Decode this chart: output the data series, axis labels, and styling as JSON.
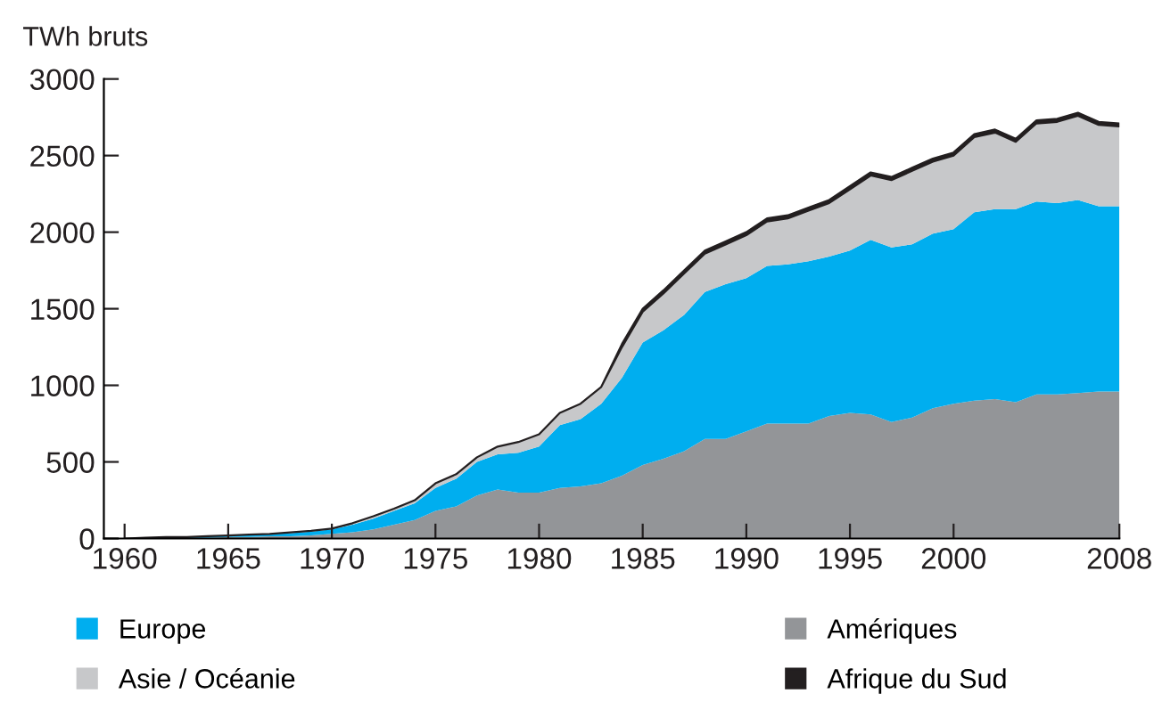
{
  "chart_data": {
    "type": "area",
    "stacked": true,
    "ylabel": "TWh bruts",
    "x": [
      1960,
      1961,
      1962,
      1963,
      1964,
      1965,
      1966,
      1967,
      1968,
      1969,
      1970,
      1971,
      1972,
      1973,
      1974,
      1975,
      1976,
      1977,
      1978,
      1979,
      1980,
      1981,
      1982,
      1983,
      1984,
      1985,
      1986,
      1987,
      1988,
      1989,
      1990,
      1991,
      1992,
      1993,
      1994,
      1995,
      1996,
      1997,
      1998,
      1999,
      2000,
      2001,
      2002,
      2003,
      2004,
      2005,
      2006,
      2007,
      2008
    ],
    "series": [
      {
        "name": "Amériques",
        "color": "#939598",
        "values": [
          0,
          0,
          5,
          5,
          5,
          10,
          10,
          15,
          15,
          20,
          30,
          40,
          60,
          90,
          120,
          180,
          210,
          280,
          320,
          300,
          300,
          330,
          340,
          360,
          410,
          480,
          520,
          570,
          650,
          650,
          700,
          750,
          750,
          750,
          800,
          820,
          810,
          760,
          790,
          850,
          880,
          900,
          910,
          890,
          940,
          940,
          950,
          960,
          960
        ]
      },
      {
        "name": "Europe",
        "color": "#00aeef",
        "values": [
          0,
          5,
          5,
          5,
          10,
          10,
          15,
          15,
          20,
          25,
          30,
          50,
          70,
          90,
          110,
          150,
          180,
          220,
          230,
          260,
          300,
          410,
          440,
          520,
          640,
          800,
          840,
          890,
          960,
          1010,
          1000,
          1030,
          1040,
          1060,
          1040,
          1060,
          1140,
          1140,
          1130,
          1140,
          1140,
          1230,
          1240,
          1260,
          1260,
          1250,
          1260,
          1210,
          1210
        ]
      },
      {
        "name": "Asie / Océanie",
        "color": "#c7c8ca",
        "values": [
          0,
          0,
          0,
          0,
          0,
          0,
          0,
          0,
          5,
          5,
          5,
          10,
          15,
          15,
          20,
          30,
          30,
          30,
          50,
          70,
          80,
          80,
          100,
          110,
          200,
          200,
          240,
          270,
          250,
          260,
          280,
          290,
          300,
          330,
          350,
          400,
          420,
          440,
          480,
          470,
          480,
          490,
          500,
          440,
          510,
          530,
          550,
          530,
          520
        ]
      },
      {
        "name": "Afrique du Sud",
        "color": "#231f20",
        "values": [
          0,
          0,
          0,
          0,
          0,
          0,
          0,
          0,
          0,
          0,
          0,
          0,
          0,
          0,
          0,
          0,
          0,
          0,
          0,
          0,
          0,
          0,
          0,
          0,
          20,
          20,
          20,
          20,
          20,
          20,
          20,
          20,
          20,
          20,
          20,
          20,
          20,
          20,
          20,
          20,
          20,
          20,
          20,
          20,
          20,
          20,
          20,
          20,
          20
        ]
      }
    ],
    "xlim": [
      1959,
      2008
    ],
    "xticks": [
      1960,
      1965,
      1970,
      1975,
      1980,
      1985,
      1990,
      1995,
      2000,
      2008
    ],
    "ylim": [
      0,
      3000
    ],
    "yticks": [
      0,
      500,
      1000,
      1500,
      2000,
      2500,
      3000
    ],
    "grid": false,
    "legend": "bottom"
  }
}
